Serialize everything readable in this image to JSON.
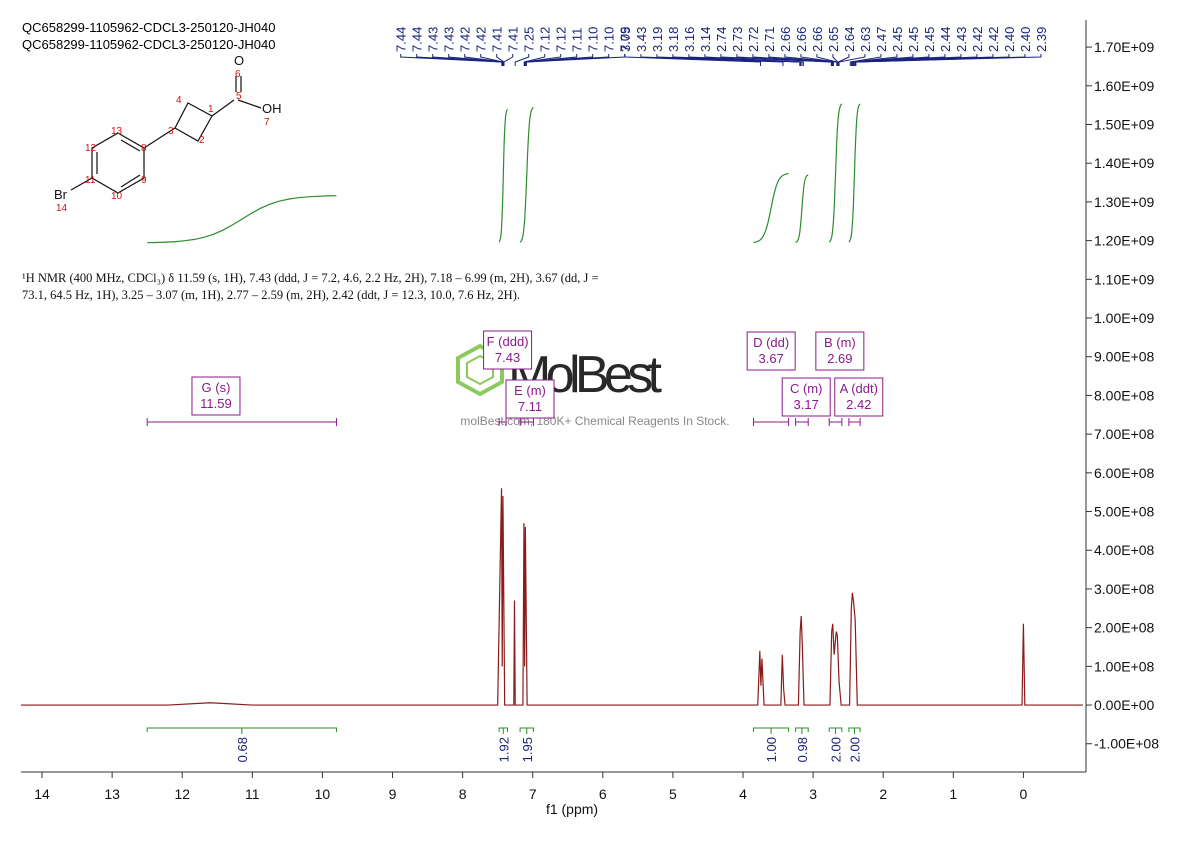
{
  "chart_data": {
    "type": "spectrum",
    "title": "QC658299-1105962-CDCL3-250120-JH040",
    "subtitle": "QC658299-1105962-CDCL3-250120-JH040",
    "x_label": "f1 (ppm)",
    "description": "¹H NMR (400 MHz, CDCl₃) δ 11.59 (s, 1H), 7.43 (ddd, J = 7.2, 4.6, 2.2 Hz, 2H), 7.18 – 6.99 (m, 2H), 3.67 (dd, J = 73.1, 64.5 Hz, 1H), 3.25 – 3.07 (m, 1H), 2.77 – 2.59 (m, 2H), 2.42 (ddt, J = 12.3, 10.0, 7.6 Hz, 2H).",
    "xlim": [
      14.3,
      -0.85
    ],
    "ylim": [
      -173000000.0,
      1770000000.0
    ],
    "xticks": [
      14,
      13,
      12,
      11,
      10,
      9,
      8,
      7,
      6,
      5,
      4,
      3,
      2,
      1,
      0
    ],
    "yticks": [
      {
        "value": 1700000000.0,
        "label": "1.70E+09"
      },
      {
        "value": 1600000000.0,
        "label": "1.60E+09"
      },
      {
        "value": 1500000000.0,
        "label": "1.50E+09"
      },
      {
        "value": 1400000000.0,
        "label": "1.40E+09"
      },
      {
        "value": 1300000000.0,
        "label": "1.30E+09"
      },
      {
        "value": 1200000000.0,
        "label": "1.20E+09"
      },
      {
        "value": 1100000000.0,
        "label": "1.10E+09"
      },
      {
        "value": 1000000000.0,
        "label": "1.00E+09"
      },
      {
        "value": 900000000.0,
        "label": "9.00E+08"
      },
      {
        "value": 800000000.0,
        "label": "8.00E+08"
      },
      {
        "value": 700000000.0,
        "label": "7.00E+08"
      },
      {
        "value": 600000000.0,
        "label": "6.00E+08"
      },
      {
        "value": 500000000.0,
        "label": "5.00E+08"
      },
      {
        "value": 400000000.0,
        "label": "4.00E+08"
      },
      {
        "value": 300000000.0,
        "label": "3.00E+08"
      },
      {
        "value": 200000000.0,
        "label": "2.00E+08"
      },
      {
        "value": 100000000.0,
        "label": "1.00E+08"
      },
      {
        "value": 0,
        "label": "0.00E+00"
      },
      {
        "value": -100000000.0,
        "label": "-1.00E+08"
      }
    ],
    "series": [
      {
        "color": "#8b1a1a",
        "x": [
          14.3,
          12.2,
          11.6,
          11.0,
          7.5,
          7.445,
          7.435,
          7.425,
          7.4,
          7.27,
          7.26,
          7.25,
          7.14,
          7.125,
          7.115,
          7.105,
          7.08,
          3.79,
          3.76,
          3.745,
          3.73,
          3.7,
          3.46,
          3.44,
          3.42,
          3.4,
          3.21,
          3.185,
          3.17,
          3.155,
          3.13,
          2.76,
          2.735,
          2.72,
          2.7,
          2.67,
          2.655,
          2.63,
          2.6,
          2.48,
          2.455,
          2.44,
          2.425,
          2.4,
          2.37,
          0.02,
          0,
          -0.02,
          -0.85
        ],
        "values": [
          0,
          0,
          6000000.0,
          0,
          0,
          560000000.0,
          100000000.0,
          540000000.0,
          0,
          0,
          270000000.0,
          0,
          0,
          470000000.0,
          100000000.0,
          460000000.0,
          0,
          0,
          140000000.0,
          50000000.0,
          120000000.0,
          0,
          0,
          130000000.0,
          40000000.0,
          0,
          0,
          190000000.0,
          230000000.0,
          160000000.0,
          0,
          0,
          190000000.0,
          210000000.0,
          130000000.0,
          190000000.0,
          180000000.0,
          60000000.0,
          0,
          0,
          250000000.0,
          290000000.0,
          270000000.0,
          220000000.0,
          0,
          0,
          210000000.0,
          0,
          0
        ]
      }
    ],
    "peaks": [
      7.44,
      7.44,
      7.43,
      7.43,
      7.42,
      7.42,
      7.41,
      7.41,
      7.25,
      7.12,
      7.12,
      7.11,
      {
        "value": 7.1,
        "label": "7.10"
      },
      {
        "value": 7.1,
        "label": "7.10"
      },
      7.09,
      3.75,
      3.43,
      3.19,
      3.18,
      3.16,
      3.14,
      2.74,
      2.73,
      2.72,
      2.71,
      2.66,
      2.66,
      2.66,
      2.65,
      2.64,
      2.63,
      2.47,
      2.45,
      2.45,
      2.45,
      2.44,
      2.43,
      2.42,
      2.42,
      {
        "value": 2.4,
        "label": "2.40"
      },
      {
        "value": 2.4,
        "label": "2.40"
      },
      2.39
    ],
    "integrals": [
      {
        "value": 0.68,
        "range": [
          12.5,
          9.8
        ]
      },
      {
        "value": 1.92,
        "range": [
          7.48,
          7.36
        ]
      },
      {
        "value": 1.95,
        "range": [
          7.18,
          6.99
        ]
      },
      {
        "value": 1.0,
        "label": "1.00",
        "range": [
          3.85,
          3.35
        ]
      },
      {
        "value": 0.98,
        "range": [
          3.25,
          3.07
        ]
      },
      {
        "value": 2.0,
        "label": "2.00",
        "range": [
          2.77,
          2.59
        ]
      },
      {
        "value": 2.0,
        "label": "2.00",
        "range": [
          2.49,
          2.33
        ]
      }
    ],
    "multiplets": [
      {
        "name": "G (s)",
        "shift": 11.59,
        "range": [
          12.5,
          9.8
        ]
      },
      {
        "name": "F (ddd)",
        "shift": 7.43,
        "range": [
          7.48,
          7.38
        ]
      },
      {
        "name": "E (m)",
        "shift": 7.11,
        "range": [
          7.18,
          6.99
        ]
      },
      {
        "name": "D (dd)",
        "shift": 3.67,
        "range": [
          3.85,
          3.35
        ]
      },
      {
        "name": "C (m)",
        "shift": 3.17,
        "range": [
          3.25,
          3.07
        ]
      },
      {
        "name": "B (m)",
        "shift": 2.69,
        "range": [
          2.77,
          2.59
        ]
      },
      {
        "name": "A (ddt)",
        "shift": 2.42,
        "range": [
          2.49,
          2.33
        ]
      }
    ]
  },
  "structure": {
    "atoms": [
      "O",
      "6",
      "OH",
      "7",
      "5",
      "1",
      "4",
      "2",
      "3",
      "13",
      "12",
      "8",
      "11",
      "9",
      "10",
      "Br",
      "14"
    ]
  },
  "watermark": {
    "brand": "MolBest",
    "tagline": "molBest.com, 180K+ Chemical Reagents In Stock."
  }
}
